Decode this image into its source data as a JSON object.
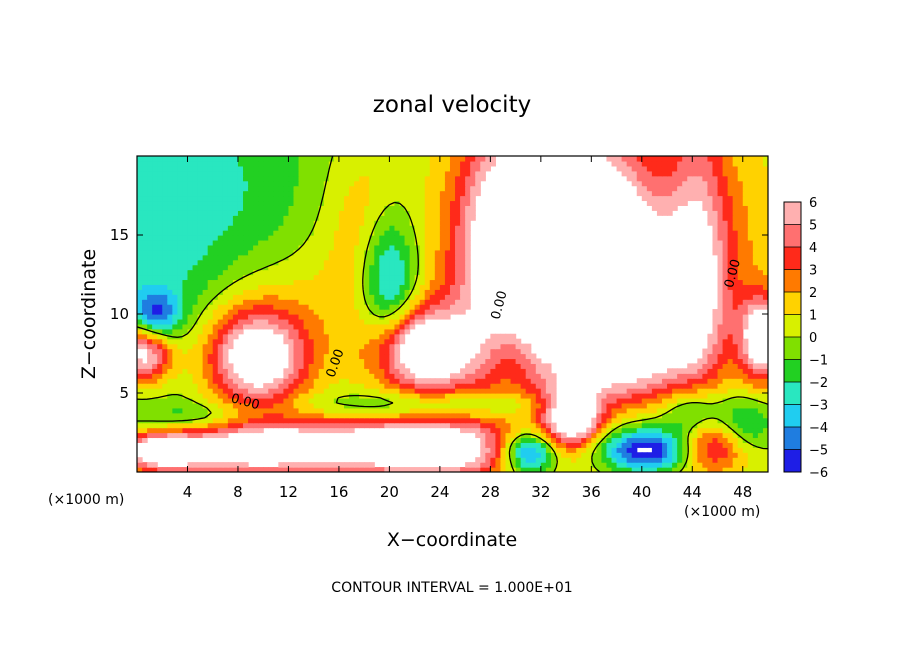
{
  "chart_data": {
    "type": "heatmap",
    "title": "zonal velocity",
    "xlabel": "X−coordinate",
    "ylabel": "Z−coordinate",
    "x_unit_left": "(×1000 m)",
    "x_unit_right": "(×1000 m)",
    "xlim": [
      0,
      50
    ],
    "ylim": [
      0,
      20
    ],
    "x_ticks": [
      4,
      8,
      12,
      16,
      20,
      24,
      28,
      32,
      36,
      40,
      44,
      48
    ],
    "y_ticks": [
      5,
      10,
      15
    ],
    "colorbar": {
      "ticks": [
        6,
        5,
        4,
        3,
        2,
        1,
        0,
        -1,
        -2,
        -3,
        -4,
        -5,
        -6
      ],
      "labels": [
        "6",
        "5",
        "4",
        "3",
        "2",
        "1",
        "0",
        "−1",
        "−2",
        "−3",
        "−4",
        "−5",
        "−6"
      ],
      "colors": [
        "#ffb0b0",
        "#ff7070",
        "#ff2a1a",
        "#ff7a00",
        "#ffd200",
        "#d8f000",
        "#80e000",
        "#22d022",
        "#29e7c0",
        "#20cdf0",
        "#1f7de0",
        "#1e1ee6",
        "#1a0aa8",
        "#6a0a9a"
      ],
      "saturation_high": "white above +6",
      "saturation_low": "white below −6"
    },
    "contour_labels": [
      "0.00",
      "0.00",
      "0.00",
      "0.00"
    ],
    "footer": "CONTOUR INTERVAL = 1.000E+01"
  }
}
